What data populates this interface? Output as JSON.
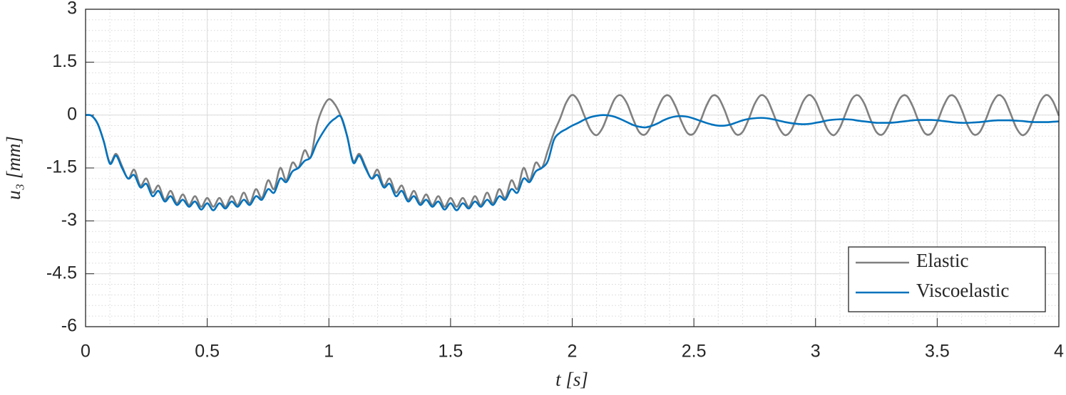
{
  "chart_data": {
    "type": "line",
    "xlabel": "t [s]",
    "ylabel": "u₃ [mm]",
    "xlim": [
      0,
      4
    ],
    "ylim": [
      -6,
      3
    ],
    "xticks": [
      0,
      0.5,
      1,
      1.5,
      2,
      2.5,
      3,
      3.5,
      4
    ],
    "yticks": [
      -6,
      -4.5,
      -3,
      -1.5,
      0,
      1.5,
      3
    ],
    "xminorticks": [
      0,
      0.1,
      0.2,
      0.3,
      0.4,
      0.5,
      0.6,
      0.7,
      0.8,
      0.9,
      1,
      1.1,
      1.2,
      1.3,
      1.4,
      1.5,
      1.6,
      1.7,
      1.8,
      1.9,
      2,
      2.1,
      2.2,
      2.3,
      2.4,
      2.5,
      2.6,
      2.7,
      2.8,
      2.9,
      3,
      3.1,
      3.2,
      3.3,
      3.4,
      3.5,
      3.6,
      3.7,
      3.8,
      3.9,
      4
    ],
    "yminorticks": [
      -6,
      -5.7,
      -5.4,
      -5.1,
      -4.8,
      -4.5,
      -4.2,
      -3.9,
      -3.6,
      -3.3,
      -3,
      -2.7,
      -2.4,
      -2.1,
      -1.8,
      -1.5,
      -1.2,
      -0.9,
      -0.6,
      -0.3,
      0,
      0.3,
      0.6,
      0.9,
      1.2,
      1.5,
      1.8,
      2.1,
      2.4,
      2.7,
      3
    ],
    "grid": true,
    "legend": "lower right",
    "x": [
      0,
      0.025,
      0.05,
      0.075,
      0.1,
      0.125,
      0.15,
      0.175,
      0.2,
      0.225,
      0.25,
      0.275,
      0.3,
      0.325,
      0.35,
      0.375,
      0.4,
      0.425,
      0.45,
      0.475,
      0.5,
      0.525,
      0.55,
      0.575,
      0.6,
      0.625,
      0.65,
      0.675,
      0.7,
      0.725,
      0.75,
      0.775,
      0.8,
      0.825,
      0.85,
      0.875,
      0.9,
      0.925,
      0.95,
      0.975,
      1,
      1.025,
      1.05,
      1.075,
      1.1,
      1.125,
      1.15,
      1.175,
      1.2,
      1.225,
      1.25,
      1.275,
      1.3,
      1.325,
      1.35,
      1.375,
      1.4,
      1.425,
      1.45,
      1.475,
      1.5,
      1.525,
      1.55,
      1.575,
      1.6,
      1.625,
      1.65,
      1.675,
      1.7,
      1.725,
      1.75,
      1.775,
      1.8,
      1.825,
      1.85,
      1.875,
      1.9,
      1.925,
      1.95,
      1.975,
      2,
      2.025,
      2.05,
      2.075,
      2.1,
      2.125,
      2.15,
      2.175,
      2.2,
      2.225,
      2.25,
      2.275,
      2.3,
      2.325,
      2.35,
      2.375,
      2.4,
      2.425,
      2.45,
      2.475,
      2.5,
      2.525,
      2.55,
      2.575,
      2.6,
      2.625,
      2.65,
      2.675,
      2.7,
      2.725,
      2.75,
      2.775,
      2.8,
      2.825,
      2.85,
      2.875,
      2.9,
      2.925,
      2.95,
      2.975,
      3,
      3.025,
      3.05,
      3.075,
      3.1,
      3.125,
      3.15,
      3.175,
      3.2,
      3.225,
      3.25,
      3.275,
      3.3,
      3.325,
      3.35,
      3.375,
      3.4,
      3.425,
      3.45,
      3.475,
      3.5,
      3.525,
      3.55,
      3.575,
      3.6,
      3.625,
      3.65,
      3.675,
      3.7,
      3.725,
      3.75,
      3.775,
      3.8,
      3.825,
      3.85,
      3.875,
      3.9,
      3.925,
      3.95,
      3.975,
      4
    ],
    "series": [
      {
        "name": "Elastic",
        "color": "#808080",
        "values": [
          0,
          -0.02,
          -0.25,
          -0.75,
          -1.35,
          -1.1,
          -1.45,
          -1.8,
          -1.55,
          -2.0,
          -1.8,
          -2.2,
          -2.0,
          -2.4,
          -2.15,
          -2.5,
          -2.25,
          -2.55,
          -2.3,
          -2.6,
          -2.35,
          -2.6,
          -2.35,
          -2.6,
          -2.3,
          -2.55,
          -2.2,
          -2.5,
          -2.1,
          -2.35,
          -1.85,
          -2.1,
          -1.5,
          -1.85,
          -1.35,
          -1.5,
          -1.0,
          -1.2,
          -0.3,
          0.2,
          0.45,
          0.3,
          -0.05,
          -0.6,
          -1.3,
          -1.1,
          -1.45,
          -1.8,
          -1.55,
          -2.0,
          -1.8,
          -2.2,
          -2.0,
          -2.4,
          -2.15,
          -2.5,
          -2.25,
          -2.55,
          -2.3,
          -2.6,
          -2.35,
          -2.6,
          -2.35,
          -2.6,
          -2.3,
          -2.55,
          -2.2,
          -2.5,
          -2.1,
          -2.35,
          -1.85,
          -2.1,
          -1.5,
          -1.85,
          -1.35,
          -1.5,
          -1.0,
          -0.5,
          -0.1,
          0.35,
          0.57,
          0.4,
          -0.02,
          -0.42,
          -0.57,
          -0.36,
          0.07,
          0.46,
          0.56,
          0.33,
          -0.11,
          -0.48,
          -0.55,
          -0.29,
          0.16,
          0.5,
          0.54,
          0.24,
          -0.2,
          -0.52,
          -0.52,
          -0.2,
          0.24,
          0.54,
          0.5,
          0.16,
          -0.29,
          -0.55,
          -0.48,
          -0.12,
          0.32,
          0.56,
          0.46,
          0.07,
          -0.36,
          -0.57,
          -0.43,
          -0.02,
          0.4,
          0.57,
          0.4,
          -0.02,
          -0.42,
          -0.57,
          -0.36,
          0.07,
          0.46,
          0.56,
          0.33,
          -0.11,
          -0.48,
          -0.55,
          -0.29,
          0.16,
          0.5,
          0.54,
          0.24,
          -0.2,
          -0.52,
          -0.52,
          -0.2,
          0.24,
          0.54,
          0.5,
          0.16,
          -0.29,
          -0.55,
          -0.48,
          -0.12,
          0.32,
          0.56,
          0.46,
          0.07,
          -0.36,
          -0.57,
          -0.43,
          -0.02,
          0.4,
          0.57,
          0.4,
          -0.02
        ]
      },
      {
        "name": "Viscoelastic",
        "color": "#0072BD",
        "values": [
          0,
          -0.02,
          -0.25,
          -0.75,
          -1.38,
          -1.15,
          -1.5,
          -1.8,
          -1.7,
          -2.05,
          -1.95,
          -2.3,
          -2.15,
          -2.45,
          -2.3,
          -2.55,
          -2.4,
          -2.6,
          -2.45,
          -2.68,
          -2.5,
          -2.7,
          -2.5,
          -2.65,
          -2.45,
          -2.6,
          -2.4,
          -2.55,
          -2.3,
          -2.4,
          -2.1,
          -2.2,
          -1.8,
          -1.9,
          -1.6,
          -1.5,
          -1.3,
          -1.2,
          -0.8,
          -0.5,
          -0.25,
          -0.1,
          -0.05,
          -0.6,
          -1.35,
          -1.15,
          -1.5,
          -1.8,
          -1.7,
          -2.05,
          -1.95,
          -2.3,
          -2.15,
          -2.45,
          -2.3,
          -2.55,
          -2.4,
          -2.6,
          -2.45,
          -2.68,
          -2.5,
          -2.7,
          -2.5,
          -2.65,
          -2.45,
          -2.6,
          -2.4,
          -2.55,
          -2.3,
          -2.4,
          -2.1,
          -2.2,
          -1.8,
          -1.9,
          -1.6,
          -1.5,
          -1.3,
          -0.7,
          -0.5,
          -0.4,
          -0.3,
          -0.22,
          -0.13,
          -0.06,
          -0.02,
          0.0,
          -0.01,
          -0.05,
          -0.12,
          -0.2,
          -0.28,
          -0.33,
          -0.35,
          -0.31,
          -0.24,
          -0.15,
          -0.08,
          -0.04,
          -0.03,
          -0.05,
          -0.1,
          -0.16,
          -0.22,
          -0.27,
          -0.3,
          -0.3,
          -0.27,
          -0.21,
          -0.15,
          -0.11,
          -0.09,
          -0.08,
          -0.09,
          -0.12,
          -0.16,
          -0.2,
          -0.23,
          -0.25,
          -0.26,
          -0.25,
          -0.22,
          -0.19,
          -0.15,
          -0.13,
          -0.12,
          -0.12,
          -0.13,
          -0.16,
          -0.18,
          -0.2,
          -0.22,
          -0.22,
          -0.22,
          -0.21,
          -0.19,
          -0.17,
          -0.15,
          -0.14,
          -0.14,
          -0.14,
          -0.15,
          -0.17,
          -0.19,
          -0.21,
          -0.22,
          -0.22,
          -0.21,
          -0.2,
          -0.18,
          -0.16,
          -0.15,
          -0.15,
          -0.15,
          -0.16,
          -0.17,
          -0.19,
          -0.2,
          -0.2,
          -0.2,
          -0.19,
          -0.18
        ]
      }
    ]
  }
}
